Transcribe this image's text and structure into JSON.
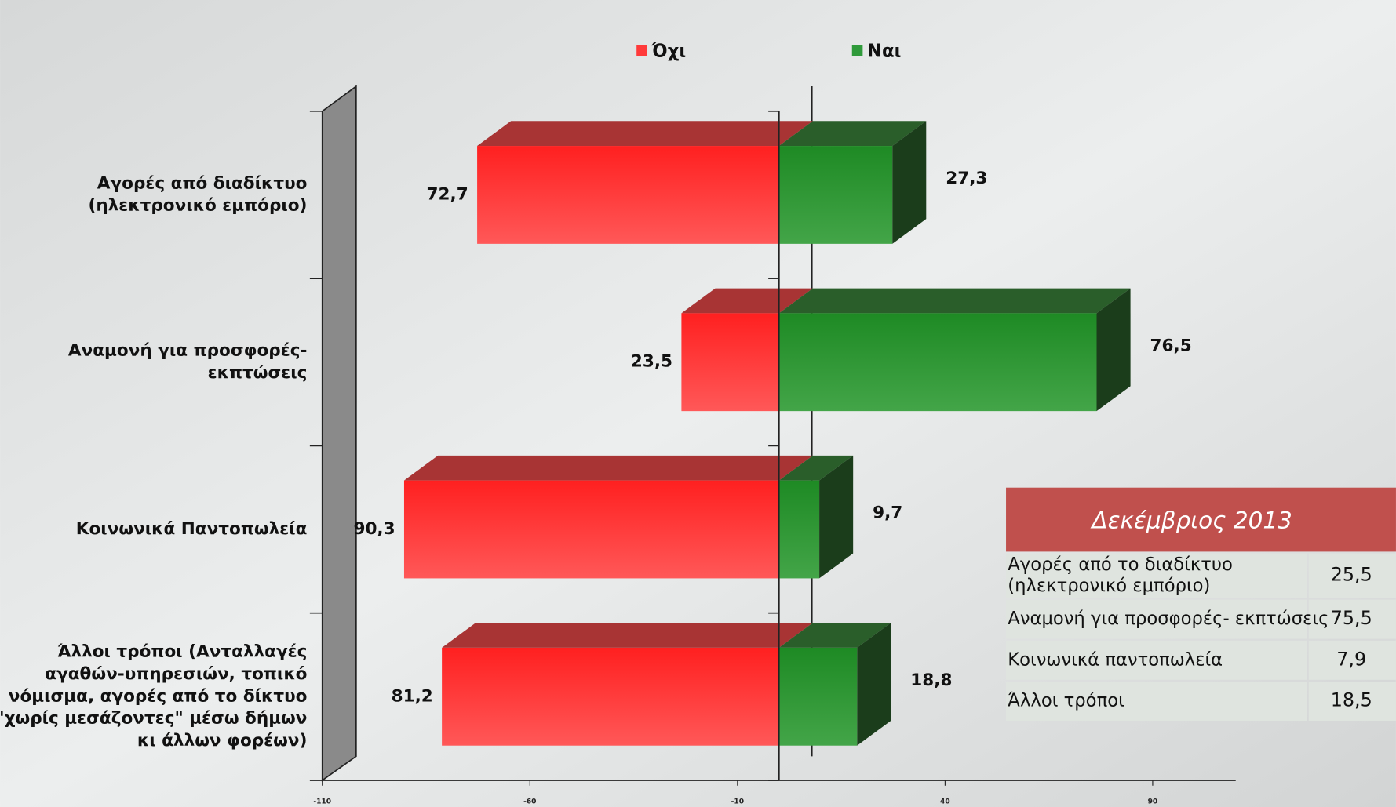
{
  "chart_data": {
    "type": "diverging-bar",
    "categories": [
      [
        "Αγορές από διαδίκτυο",
        "(ηλεκτρονικό εμπόριο)"
      ],
      [
        "Αναμονή για προσφορές-",
        "εκπτώσεις"
      ],
      [
        "Κοινωνικά Παντοπωλεία"
      ],
      [
        "Άλλοι τρόποι (Ανταλλαγές",
        "αγαθών-υπηρεσιών, τοπικό",
        "νόμισμα, αγορές από το δίκτυο",
        "\"χωρίς μεσάζοντες\" μέσω δήμων",
        "κι άλλων φορέων)"
      ]
    ],
    "series": [
      {
        "name": "Όχι",
        "color": "#ff3a3a",
        "values": [
          72.7,
          23.5,
          90.3,
          81.2
        ],
        "value_labels": [
          "72,7",
          "23,5",
          "90,3",
          "81,2"
        ]
      },
      {
        "name": "Ναι",
        "color": "#2f9a3a",
        "values": [
          27.3,
          76.5,
          9.7,
          18.8
        ],
        "value_labels": [
          "27,3",
          "76,5",
          "9,7",
          "18,8"
        ]
      }
    ],
    "xlim": [
      -110,
      110
    ],
    "xticks": [
      -110,
      -60,
      -10,
      40,
      90
    ]
  },
  "table": {
    "title": "Δεκέμβριος 2013",
    "rows": [
      [
        [
          "Αγορές από το διαδίκτυο",
          "(ηλεκτρονικό εμπόριο)"
        ],
        "25,5"
      ],
      [
        [
          "Αναμονή για προσφορές- εκπτώσεις"
        ],
        "75,5"
      ],
      [
        [
          "Κοινωνικά παντοπωλεία"
        ],
        "7,9"
      ],
      [
        [
          "Άλλοι τρόποι"
        ],
        "18,5"
      ]
    ]
  }
}
